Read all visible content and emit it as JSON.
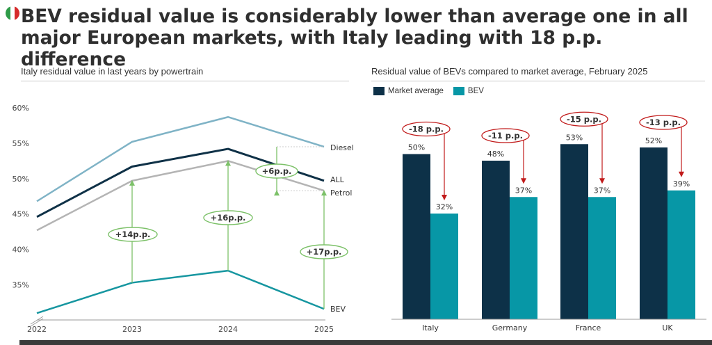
{
  "title": "BEV residual value is considerably lower than average one in all major European markets, with Italy leading with 18 p.p. difference",
  "colors": {
    "diesel": "#7fb3c6",
    "all": "#0f3147",
    "petrol": "#b4b4b4",
    "bev": "#1696a0",
    "market_bar": "#0d3148",
    "bev_bar": "#0797a6",
    "green_arrow": "#7cc168",
    "red_arrow": "#c11a1a"
  },
  "chart_data": [
    {
      "type": "line",
      "title": "Italy residual value in last years by powertrain",
      "x": [
        "2022",
        "2023",
        "2024",
        "2025"
      ],
      "ylim": [
        30,
        60
      ],
      "yticks": [
        "35%",
        "40%",
        "45%",
        "50%",
        "55%",
        "60%"
      ],
      "ytick_values": [
        35,
        40,
        45,
        50,
        55,
        60
      ],
      "series": [
        {
          "name": "Diesel",
          "key": "diesel",
          "values": [
            46.8,
            55.2,
            58.7,
            54.5
          ]
        },
        {
          "name": "ALL",
          "key": "all",
          "values": [
            44.6,
            51.7,
            54.2,
            49.7
          ]
        },
        {
          "name": "Petrol",
          "key": "petrol",
          "values": [
            42.7,
            49.7,
            52.5,
            48.3
          ]
        },
        {
          "name": "BEV",
          "key": "bev",
          "values": [
            31.0,
            35.3,
            37.0,
            31.6
          ]
        }
      ],
      "gap_annotations": [
        {
          "label": "+14p.p.",
          "x": "2023",
          "from": 35.3,
          "to": 49.7
        },
        {
          "label": "+16p.p.",
          "x": "2024",
          "from": 37.0,
          "to": 52.5
        },
        {
          "label": "+17p.p.",
          "x": "2025",
          "from": 31.6,
          "to": 48.3
        },
        {
          "label": "+6p.p.",
          "from": 48.3,
          "to": 54.5
        }
      ]
    },
    {
      "type": "bar",
      "title": "Residual value of BEVs compared to market average, February 2025",
      "categories": [
        "Italy",
        "Germany",
        "France",
        "UK"
      ],
      "ylim": [
        0,
        75
      ],
      "series": [
        {
          "name": "Market average",
          "key": "market_bar",
          "values": [
            50,
            48,
            53,
            52
          ],
          "labels": [
            "50%",
            "48%",
            "53%",
            "52%"
          ]
        },
        {
          "name": "BEV",
          "key": "bev_bar",
          "values": [
            32,
            37,
            37,
            39
          ],
          "labels": [
            "32%",
            "37%",
            "37%",
            "39%"
          ]
        }
      ],
      "differences": [
        "-18 p.p.",
        "-11 p.p.",
        "-15 p.p.",
        "-13 p.p."
      ]
    }
  ]
}
